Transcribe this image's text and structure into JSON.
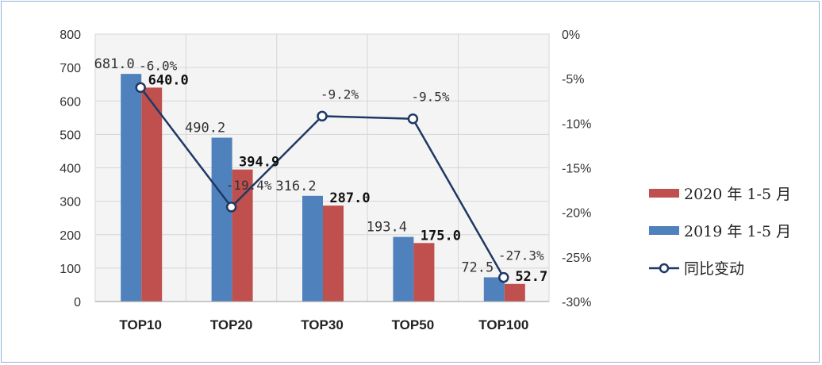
{
  "chart_data": {
    "type": "bar",
    "categories": [
      "TOP10",
      "TOP20",
      "TOP30",
      "TOP50",
      "TOP100"
    ],
    "series": [
      {
        "name": "2019 年 1-5 月",
        "type": "bar",
        "axis": "left",
        "color": "#4f81bd",
        "values": [
          681.0,
          490.2,
          316.2,
          193.4,
          72.5
        ],
        "labels": [
          "681.0",
          "490.2",
          "316.2",
          "193.4",
          "72.5"
        ]
      },
      {
        "name": "2020 年 1-5 月",
        "type": "bar",
        "axis": "left",
        "color": "#c0504d",
        "values": [
          640.0,
          394.9,
          287.0,
          175.0,
          52.7
        ],
        "labels": [
          "640.0",
          "394.9",
          "287.0",
          "175.0",
          "52.7"
        ]
      },
      {
        "name": "同比变动",
        "type": "line",
        "axis": "right",
        "color": "#1f3864",
        "values": [
          -6.0,
          -19.4,
          -9.2,
          -9.5,
          -27.3
        ],
        "labels": [
          "-6.0%",
          "-19.4%",
          "-9.2%",
          "-9.5%",
          "-27.3%"
        ]
      }
    ],
    "y_left": {
      "range": [
        0,
        800
      ],
      "ticks": [
        "0",
        "100",
        "200",
        "300",
        "400",
        "500",
        "600",
        "700",
        "800"
      ]
    },
    "y_right": {
      "range": [
        -30,
        0
      ],
      "ticks": [
        "0%",
        "-5%",
        "-10%",
        "-15%",
        "-20%",
        "-25%",
        "-30%"
      ]
    },
    "legend_order": [
      "2020 年 1-5 月",
      "2019 年 1-5 月",
      "同比变动"
    ],
    "legend_position": "right",
    "grid": true
  }
}
